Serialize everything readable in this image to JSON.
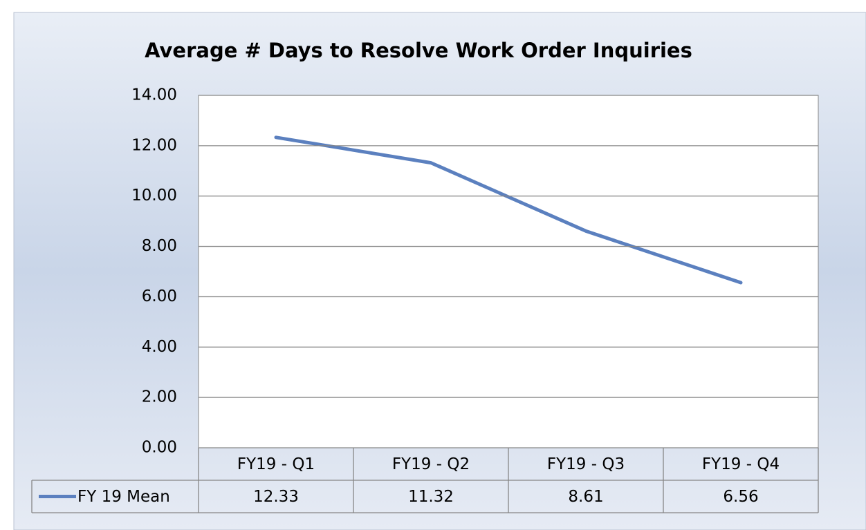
{
  "chart_data": {
    "type": "line",
    "title": "Average # Days to Resolve Work Order Inquiries",
    "categories": [
      "FY19 - Q1",
      "FY19 - Q2",
      "FY19 - Q3",
      "FY19 - Q4"
    ],
    "series": [
      {
        "name": "FY 19 Mean",
        "color": "#5b80bf",
        "values": [
          12.33,
          11.32,
          8.61,
          6.56
        ]
      }
    ],
    "ylim": [
      0,
      14
    ],
    "yticks": [
      {
        "value": 0,
        "label": "0.00"
      },
      {
        "value": 2,
        "label": "2.00"
      },
      {
        "value": 4,
        "label": "4.00"
      },
      {
        "value": 6,
        "label": "6.00"
      },
      {
        "value": 8,
        "label": "8.00"
      },
      {
        "value": 10,
        "label": "10.00"
      },
      {
        "value": 12,
        "label": "12.00"
      },
      {
        "value": 14,
        "label": "14.00"
      }
    ],
    "grid": true
  }
}
